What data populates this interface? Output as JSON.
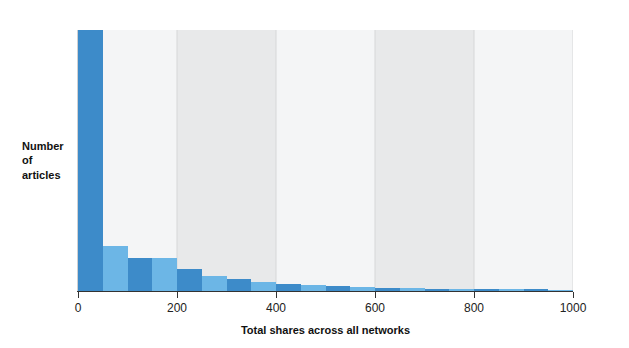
{
  "chart_data": {
    "type": "histogram",
    "x_label": "Total shares across all networks",
    "y_label": "Number of articles",
    "bins": [
      0,
      50,
      100,
      150,
      200,
      250,
      300,
      350,
      400,
      450,
      500,
      550,
      600,
      650,
      700,
      750,
      800,
      850,
      900,
      950,
      1000
    ],
    "values": [
      100,
      17.2,
      12.6,
      12.6,
      8.4,
      5.7,
      4.6,
      3.4,
      2.7,
      2.3,
      1.9,
      1.5,
      1.1,
      1.0,
      0.8,
      0.8,
      0.8,
      0.6,
      0.6,
      0.4
    ],
    "colors": [
      "#3d8bc9",
      "#6cb6e6",
      "#3d8bc9",
      "#6cb6e6",
      "#3d8bc9",
      "#6cb6e6",
      "#3d8bc9",
      "#6cb6e6",
      "#3d8bc9",
      "#6cb6e6",
      "#3d8bc9",
      "#6cb6e6",
      "#3d8bc9",
      "#6cb6e6",
      "#3d8bc9",
      "#6cb6e6",
      "#3d8bc9",
      "#6cb6e6",
      "#3d8bc9",
      "#6cb6e6"
    ],
    "xlim": [
      0,
      1000
    ],
    "xticks": [
      0,
      200,
      400,
      600,
      800,
      1000
    ],
    "ylim": [
      0,
      100
    ],
    "grid": true,
    "tick_labels": "x"
  }
}
